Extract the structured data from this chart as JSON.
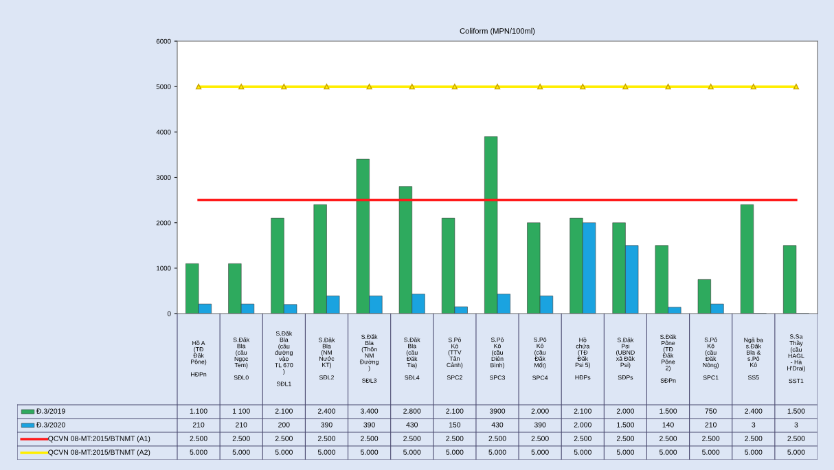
{
  "chart_data": {
    "type": "bar",
    "title": "Coliform (MPN/100ml)",
    "categories": [
      "Hồ A\n(TĐ\nĐăk\nPône)\n\nHĐPn",
      "S.Đăk\nBla\n(cầu\nNgọc\nTem)\n\nSĐL0",
      "S.Đăk\nBla\n(cầu\nđường\nvào\nTL 670\n)\n\nSĐL1",
      "S.Đăk\nBla\n(NM\nNước\nKT)\n\nSĐL2",
      "S.Đăk\nBla\n(Thôn\nNM\nĐường\n)\n\nSĐL3",
      "S.Đăk\nBla\n(cầu\nĐăk\nTia)\n\nSĐL4",
      "S.Pô\nKô\n(TTV\nTân\nCảnh)\n\nSPC2",
      "S.Pô\nKô\n(cầu\nDiên\nBình)\n\nSPC3",
      "S.Pô\nKô\n(cầu\nĐăk\nMốt)\n\nSPC4",
      "Hồ\nchứa\n(TĐ\nĐăk\nPsi 5)\n\nHĐPs",
      "S.Đăk\nPsi\n(UBND\nxã Đăk\nPsi)\n\nSĐPs",
      "S.Đăk\nPône\n(TĐ\nĐăk\nPône\n2)\n\nSĐPn",
      "S.Pô\nKô\n(cầu\nĐăk\nNông)\n\nSPC1",
      "Ngã ba\ns.Đăk\nBla &\ns.Pô\nKô\n\nSS5",
      "S.Sa\nThầy\n(cầu\nHAGL\n- Hà\nH'Drai)\n\nSST1"
    ],
    "series": [
      {
        "name": "Đ.3/2019",
        "color": "#2eaa5e",
        "values": [
          1100,
          1100,
          2100,
          2400,
          3400,
          2800,
          2100,
          3900,
          2000,
          2100,
          2000,
          1500,
          750,
          2400,
          1500
        ],
        "value_labels": [
          "1.100",
          "1 100",
          "2.100",
          "2.400",
          "3.400",
          "2.800",
          "2.100",
          "3900",
          "2.000",
          "2.100",
          "2.000",
          "1.500",
          "750",
          "2.400",
          "1.500"
        ]
      },
      {
        "name": "Đ.3/2020",
        "color": "#1aa3e0",
        "values": [
          210,
          210,
          200,
          390,
          390,
          430,
          150,
          430,
          390,
          2000,
          1500,
          140,
          210,
          3,
          3
        ],
        "value_labels": [
          "210",
          "210",
          "200",
          "390",
          "390",
          "430",
          "150",
          "430",
          "390",
          "2.000",
          "1.500",
          "140",
          "210",
          "3",
          "3"
        ]
      },
      {
        "name": "QCVN 08-MT:2015/BTNMT (A1)",
        "type": "line",
        "color": "#ff1a1a",
        "marker": "none",
        "values": [
          2500,
          2500,
          2500,
          2500,
          2500,
          2500,
          2500,
          2500,
          2500,
          2500,
          2500,
          2500,
          2500,
          2500,
          2500
        ],
        "value_labels": [
          "2.500",
          "2.500",
          "2.500",
          "2.500",
          "2.500",
          "2.500",
          "2.500",
          "2.500",
          "2.500",
          "2.500",
          "2.500",
          "2.500",
          "2.500",
          "2.500",
          "2.500"
        ]
      },
      {
        "name": "QCVN 08-MT:2015/BTNMT (A2)",
        "type": "line",
        "color": "#ffee00",
        "marker": "triangle",
        "values": [
          5000,
          5000,
          5000,
          5000,
          5000,
          5000,
          5000,
          5000,
          5000,
          5000,
          5000,
          5000,
          5000,
          5000,
          5000
        ],
        "value_labels": [
          "5.000",
          "5.000",
          "5.000",
          "5.000",
          "5.000",
          "5.000",
          "5.000",
          "5.000",
          "5.000",
          "5.000",
          "5.000",
          "5.000",
          "5.000",
          "5.000",
          "5.000"
        ]
      }
    ],
    "ylim": [
      0,
      6000
    ],
    "yticks": [
      0,
      1000,
      2000,
      3000,
      4000,
      5000,
      6000
    ],
    "grid": false,
    "legend": "bottom"
  }
}
